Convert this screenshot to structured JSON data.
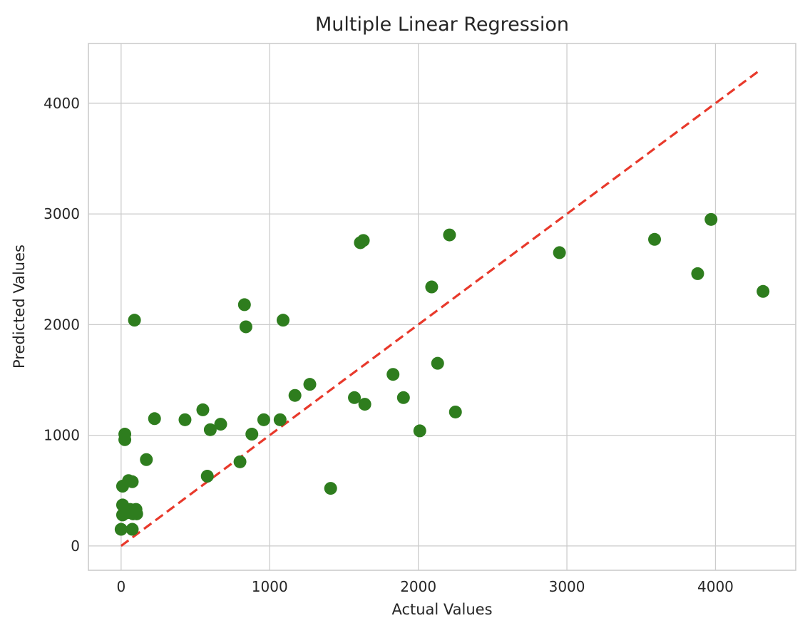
{
  "chart_data": {
    "type": "scatter",
    "title": "Multiple Linear Regression",
    "xlabel": "Actual Values",
    "ylabel": "Predicted Values",
    "xlim": [
      -220,
      4540
    ],
    "ylim": [
      -220,
      4540
    ],
    "xticks": [
      0,
      1000,
      2000,
      3000,
      4000
    ],
    "yticks": [
      0,
      1000,
      2000,
      3000,
      4000
    ],
    "xtick_labels": [
      "0",
      "1000",
      "2000",
      "3000",
      "4000"
    ],
    "ytick_labels": [
      "0",
      "1000",
      "2000",
      "3000",
      "4000"
    ],
    "grid": true,
    "point_color": "#2e7d1e",
    "line_color": "#e8392b",
    "reference_line": {
      "style": "dashed",
      "x": [
        0,
        4300
      ],
      "y": [
        0,
        4300
      ]
    },
    "points": [
      [
        0,
        150
      ],
      [
        10,
        280
      ],
      [
        10,
        370
      ],
      [
        10,
        540
      ],
      [
        25,
        1010
      ],
      [
        25,
        960
      ],
      [
        40,
        300
      ],
      [
        50,
        590
      ],
      [
        60,
        330
      ],
      [
        75,
        580
      ],
      [
        75,
        150
      ],
      [
        80,
        290
      ],
      [
        90,
        2040
      ],
      [
        100,
        330
      ],
      [
        105,
        290
      ],
      [
        170,
        780
      ],
      [
        225,
        1150
      ],
      [
        430,
        1140
      ],
      [
        550,
        1230
      ],
      [
        580,
        630
      ],
      [
        600,
        1050
      ],
      [
        670,
        1100
      ],
      [
        800,
        760
      ],
      [
        830,
        2180
      ],
      [
        840,
        1980
      ],
      [
        880,
        1010
      ],
      [
        960,
        1140
      ],
      [
        1070,
        1140
      ],
      [
        1090,
        2040
      ],
      [
        1170,
        1360
      ],
      [
        1270,
        1460
      ],
      [
        1410,
        520
      ],
      [
        1570,
        1340
      ],
      [
        1610,
        2740
      ],
      [
        1630,
        2760
      ],
      [
        1640,
        1280
      ],
      [
        1830,
        1550
      ],
      [
        1900,
        1340
      ],
      [
        2010,
        1040
      ],
      [
        2090,
        2340
      ],
      [
        2130,
        1650
      ],
      [
        2210,
        2810
      ],
      [
        2250,
        1210
      ],
      [
        2950,
        2650
      ],
      [
        3590,
        2770
      ],
      [
        3880,
        2460
      ],
      [
        3970,
        2950
      ],
      [
        4320,
        2300
      ]
    ]
  }
}
